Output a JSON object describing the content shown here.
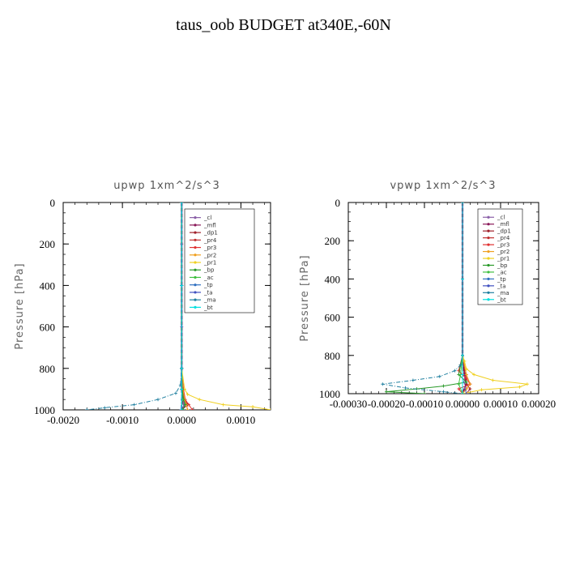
{
  "title": "taus_oob  BUDGET at340E,-60N",
  "chart_data": [
    {
      "type": "line",
      "title": "upwp   1xm^2/s^3",
      "ylabel": "Pressure  [hPa]",
      "xlim": [
        -0.002,
        0.0015
      ],
      "ylim": [
        1000,
        0
      ],
      "x_ticks": [
        "-0.0020",
        "-0.0010",
        "0.0000",
        "0.0010"
      ],
      "x_tick_values": [
        -0.002,
        -0.001,
        0.0,
        0.001
      ],
      "y_ticks": [
        "0",
        "200",
        "400",
        "600",
        "800",
        "1000"
      ],
      "y_tick_values": [
        0,
        200,
        400,
        600,
        800,
        1000
      ],
      "legend_position": "top-right",
      "series": [
        {
          "name": "_cl",
          "color": "#8a5fa8",
          "pressure": [
            0,
            200,
            400,
            600,
            800,
            900,
            950,
            975,
            990,
            1000
          ],
          "values": [
            0,
            0,
            0,
            0,
            0,
            0.0,
            2e-05,
            4e-05,
            3e-05,
            0
          ]
        },
        {
          "name": "_mfl",
          "color": "#8b1a5a",
          "pressure": [
            0,
            400,
            800,
            900,
            950,
            1000
          ],
          "values": [
            0,
            0,
            0,
            0,
            1e-05,
            0
          ]
        },
        {
          "name": "_dp1",
          "color": "#a0202a",
          "pressure": [
            0,
            400,
            800,
            900,
            950,
            975,
            1000
          ],
          "values": [
            0,
            0,
            0,
            2e-05,
            5e-05,
            0.0001,
            0
          ]
        },
        {
          "name": "_pr4",
          "color": "#c03030",
          "pressure": [
            0,
            400,
            800,
            900,
            950,
            975,
            1000
          ],
          "values": [
            0,
            0,
            0,
            1e-05,
            4e-05,
            8e-05,
            0.0001
          ]
        },
        {
          "name": "_pr3",
          "color": "#e03030",
          "pressure": [
            0,
            400,
            800,
            900,
            950,
            975,
            1000
          ],
          "values": [
            0,
            0,
            0,
            3e-05,
            6e-05,
            0.00012,
            0.00018
          ]
        },
        {
          "name": "_pr2",
          "color": "#f0a020",
          "pressure": [
            0,
            400,
            800,
            900,
            950,
            975,
            1000
          ],
          "values": [
            0,
            0,
            0,
            2e-05,
            5e-05,
            8e-05,
            0.0001
          ]
        },
        {
          "name": "_pr1",
          "color": "#f0d020",
          "pressure": [
            0,
            400,
            800,
            900,
            925,
            950,
            975,
            985,
            1000
          ],
          "values": [
            0,
            0,
            0,
            5e-05,
            0.0001,
            0.0003,
            0.0007,
            0.0012,
            0.0015
          ]
        },
        {
          "name": "_bp",
          "color": "#2a9a2a",
          "pressure": [
            0,
            400,
            800,
            900,
            950,
            975,
            1000
          ],
          "values": [
            0,
            0,
            0,
            1e-05,
            3e-05,
            6e-05,
            2e-05
          ]
        },
        {
          "name": "_ac",
          "color": "#40c040",
          "pressure": [
            0,
            400,
            800,
            900,
            950,
            1000
          ],
          "values": [
            0,
            0,
            0,
            0,
            1e-05,
            0
          ]
        },
        {
          "name": "_tp",
          "color": "#3070c0",
          "pressure": [
            0,
            400,
            800,
            900,
            1000
          ],
          "values": [
            0,
            0,
            0,
            0,
            0
          ]
        },
        {
          "name": "_ta",
          "color": "#4050c0",
          "pressure": [
            0,
            400,
            800,
            900,
            1000
          ],
          "values": [
            0,
            0,
            0,
            0,
            -1e-05
          ]
        },
        {
          "name": "_ma",
          "color": "#2080a0",
          "pressure": [
            0,
            400,
            800,
            880,
            920,
            950,
            975,
            990,
            1000
          ],
          "values": [
            0,
            0,
            0,
            -2e-05,
            -0.0001,
            -0.0004,
            -0.0008,
            -0.0013,
            -0.0016
          ]
        },
        {
          "name": "_bt",
          "color": "#00e0e0",
          "pressure": [
            0,
            400,
            800,
            900,
            1000
          ],
          "values": [
            0,
            0,
            0,
            0,
            0
          ]
        }
      ]
    },
    {
      "type": "line",
      "title": "vpwp   1xm^2/s^3",
      "ylabel": "Pressure  [hPa]",
      "xlim": [
        -0.0003,
        0.0002
      ],
      "ylim": [
        1000,
        0
      ],
      "x_ticks": [
        "-0.00030",
        "-0.00020",
        "-0.00010",
        "0.00000",
        "0.00010",
        "0.00020"
      ],
      "x_tick_values": [
        -0.0003,
        -0.0002,
        -0.0001,
        0.0,
        0.0001,
        0.0002
      ],
      "y_ticks": [
        "0",
        "200",
        "400",
        "600",
        "800",
        "1000"
      ],
      "y_tick_values": [
        0,
        200,
        400,
        600,
        800,
        1000
      ],
      "legend_position": "top-right",
      "series": [
        {
          "name": "_cl",
          "color": "#8a5fa8",
          "pressure": [
            0,
            400,
            800,
            900,
            950,
            1000
          ],
          "values": [
            0,
            0,
            0,
            5e-06,
            1e-05,
            0
          ]
        },
        {
          "name": "_mfl",
          "color": "#8b1a5a",
          "pressure": [
            0,
            400,
            800,
            900,
            950,
            1000
          ],
          "values": [
            0,
            0,
            0,
            5e-06,
            1e-05,
            0
          ]
        },
        {
          "name": "_dp1",
          "color": "#a0202a",
          "pressure": [
            0,
            400,
            800,
            880,
            920,
            950,
            975,
            1000
          ],
          "values": [
            0,
            0,
            0,
            5e-06,
            1e-05,
            1e-05,
            2e-05,
            1e-05
          ]
        },
        {
          "name": "_pr4",
          "color": "#c03030",
          "pressure": [
            0,
            400,
            800,
            900,
            950,
            975,
            1000
          ],
          "values": [
            0,
            0,
            0,
            1e-05,
            2e-05,
            1e-05,
            0
          ]
        },
        {
          "name": "_pr3",
          "color": "#e03030",
          "pressure": [
            0,
            400,
            800,
            880,
            920,
            950,
            975,
            1000
          ],
          "values": [
            0,
            0,
            0,
            -1e-05,
            1e-05,
            2e-05,
            -1e-05,
            0
          ]
        },
        {
          "name": "_pr2",
          "color": "#f0a020",
          "pressure": [
            0,
            400,
            800,
            900,
            950,
            975,
            1000
          ],
          "values": [
            0,
            0,
            0,
            1e-05,
            2e-05,
            1e-05,
            0
          ]
        },
        {
          "name": "_pr1",
          "color": "#f0d020",
          "pressure": [
            0,
            400,
            800,
            830,
            870,
            900,
            930,
            950,
            965,
            980,
            1000
          ],
          "values": [
            0,
            0,
            0,
            5e-06,
            1e-05,
            3e-05,
            8e-05,
            0.00017,
            0.00015,
            5e-05,
            0
          ]
        },
        {
          "name": "_bp",
          "color": "#2a9a2a",
          "pressure": [
            0,
            400,
            800,
            850,
            900,
            940,
            960,
            975,
            990,
            1000
          ],
          "values": [
            0,
            0,
            0,
            -5e-06,
            -1e-05,
            1e-05,
            -5e-05,
            -0.00012,
            -0.0002,
            -0.0001
          ]
        },
        {
          "name": "_ac",
          "color": "#40c040",
          "pressure": [
            0,
            400,
            800,
            900,
            950,
            1000
          ],
          "values": [
            0,
            0,
            0,
            -5e-06,
            -1e-05,
            0
          ]
        },
        {
          "name": "_tp",
          "color": "#3070c0",
          "pressure": [
            0,
            400,
            800,
            900,
            1000
          ],
          "values": [
            0,
            0,
            0,
            0,
            0
          ]
        },
        {
          "name": "_ta",
          "color": "#4050c0",
          "pressure": [
            0,
            400,
            800,
            900,
            1000
          ],
          "values": [
            0,
            0,
            0,
            0,
            1e-05
          ]
        },
        {
          "name": "_ma",
          "color": "#2080a0",
          "pressure": [
            0,
            400,
            800,
            850,
            880,
            910,
            930,
            950,
            970,
            990,
            1000
          ],
          "values": [
            0,
            0,
            0,
            -5e-06,
            -2e-05,
            -6e-05,
            -0.00013,
            -0.00021,
            -0.00015,
            -5e-05,
            0
          ]
        },
        {
          "name": "_bt",
          "color": "#00e0e0",
          "pressure": [
            0,
            400,
            800,
            900,
            1000
          ],
          "values": [
            0,
            0,
            0,
            0,
            0
          ]
        }
      ]
    }
  ]
}
